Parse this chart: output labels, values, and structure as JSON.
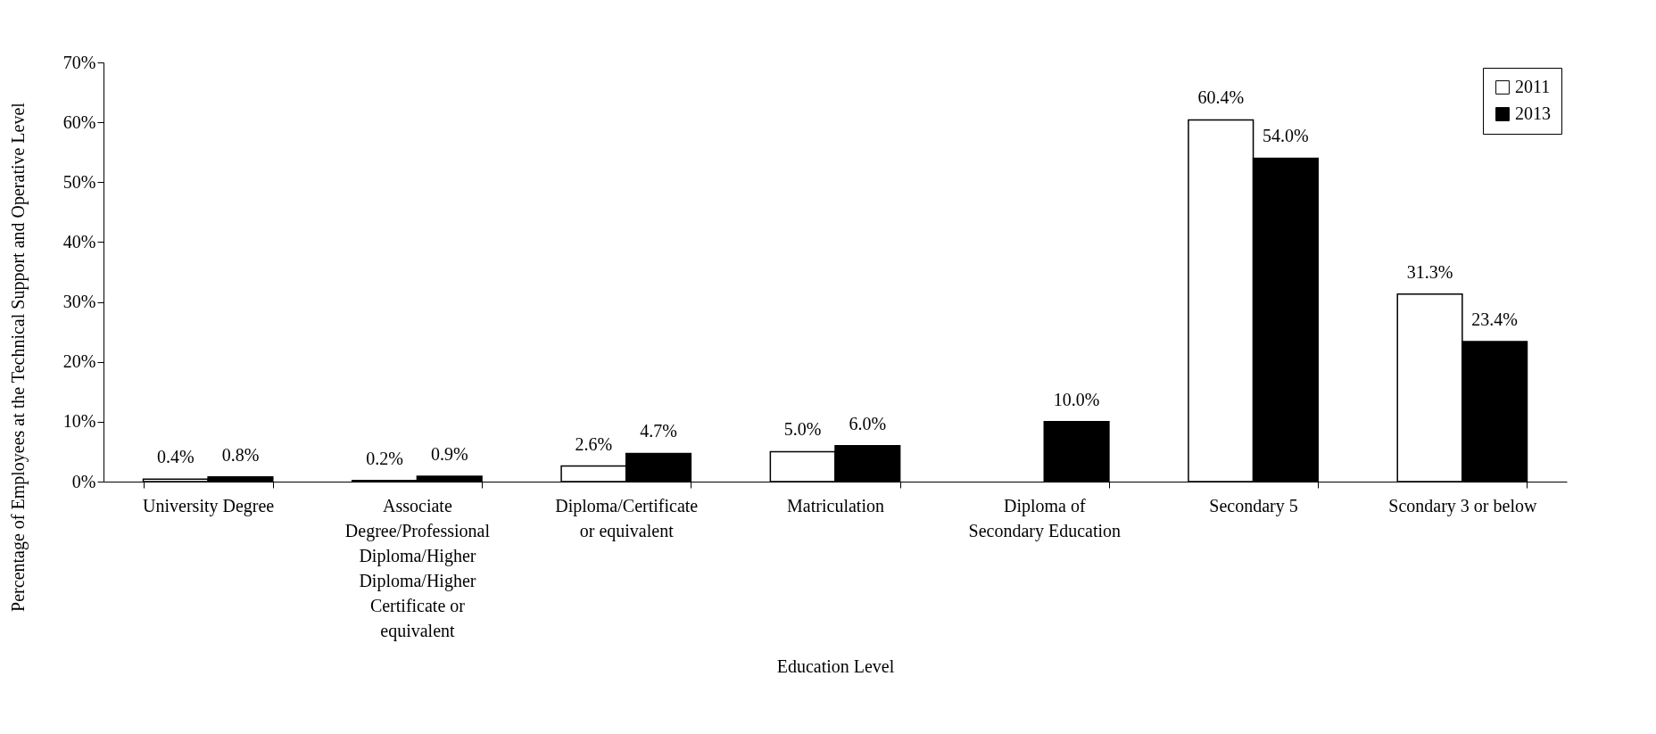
{
  "chart_data": {
    "type": "bar",
    "xlabel": "Education Level",
    "ylabel": "Percentage of Employees at the Technical Support and Operative Level",
    "categories": [
      "University Degree",
      "Associate Degree/Professional Diploma/Higher Diploma/Higher Certificate or equivalent",
      "Diploma/Certificate or equivalent",
      "Matriculation",
      "Diploma of Secondary Education",
      "Secondary 5",
      "Scondary 3 or below"
    ],
    "series": [
      {
        "name": "2011",
        "color": "#ffffff",
        "values": [
          0.4,
          0.2,
          2.6,
          5.0,
          null,
          60.4,
          31.3
        ],
        "value_labels": [
          "0.4%",
          "0.2%",
          "2.6%",
          "5.0%",
          null,
          "60.4%",
          "31.3%"
        ]
      },
      {
        "name": "2013",
        "color": "#000000",
        "values": [
          0.8,
          0.9,
          4.7,
          6.0,
          10.0,
          54.0,
          23.4
        ],
        "value_labels": [
          "0.8%",
          "0.9%",
          "4.7%",
          "6.0%",
          "10.0%",
          "54.0%",
          "23.4%"
        ]
      }
    ],
    "ylim": [
      0,
      70
    ],
    "yticks": [
      {
        "value": 0,
        "label": "0%"
      },
      {
        "value": 10,
        "label": "10%"
      },
      {
        "value": 20,
        "label": "20%"
      },
      {
        "value": 30,
        "label": "30%"
      },
      {
        "value": 40,
        "label": "40%"
      },
      {
        "value": 50,
        "label": "50%"
      },
      {
        "value": 60,
        "label": "60%"
      },
      {
        "value": 70,
        "label": "70%"
      }
    ],
    "grid": false,
    "legend": "top right"
  }
}
